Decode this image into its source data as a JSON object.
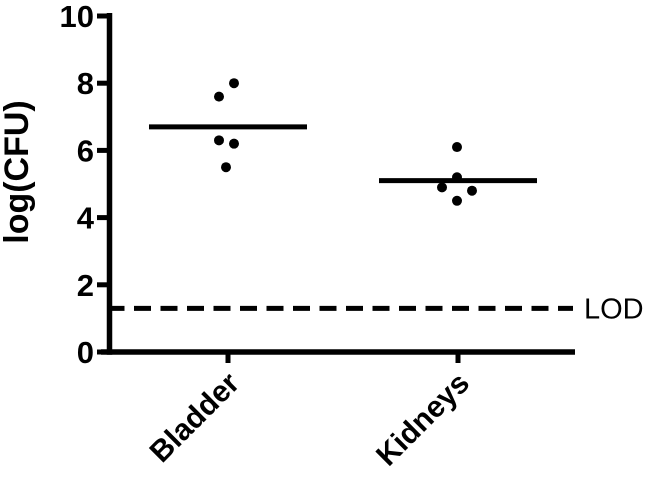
{
  "chart_data": {
    "type": "scatter",
    "subtype": "column-dot-plot",
    "ylabel": "log(CFU)",
    "xlabel": "",
    "ylim": [
      0,
      10
    ],
    "yticks": [
      0,
      2,
      4,
      6,
      8,
      10
    ],
    "categories": [
      "Bladder",
      "Kidneys"
    ],
    "series": [
      {
        "name": "Bladder",
        "points": [
          {
            "value": 8.0,
            "jitter": 6
          },
          {
            "value": 7.6,
            "jitter": -9
          },
          {
            "value": 6.3,
            "jitter": -9
          },
          {
            "value": 6.2,
            "jitter": 6
          },
          {
            "value": 5.5,
            "jitter": -2
          }
        ],
        "mean_line": 6.7
      },
      {
        "name": "Kidneys",
        "points": [
          {
            "value": 6.1,
            "jitter": -1
          },
          {
            "value": 5.2,
            "jitter": -1
          },
          {
            "value": 4.9,
            "jitter": -16
          },
          {
            "value": 4.8,
            "jitter": 14
          },
          {
            "value": 4.5,
            "jitter": -1
          }
        ],
        "mean_line": 5.1
      }
    ],
    "lod": {
      "value": 1.3,
      "label": "LOD",
      "line_style": "dashed"
    },
    "grid": false,
    "legend": "none",
    "colors": {
      "foreground": "#000000",
      "background": "#ffffff"
    }
  }
}
